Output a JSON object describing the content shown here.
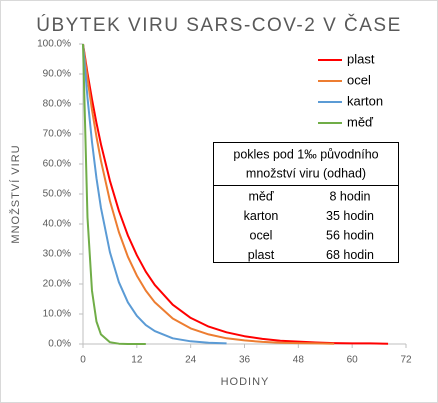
{
  "chart_data": {
    "type": "line",
    "title": "ÚBYTEK VIRU SARS-COV-2 V ČASE",
    "x_label": "HODINY",
    "y_label": "MNOŽSTVÍ VIRU",
    "x": [
      0,
      1,
      2,
      3,
      4,
      6,
      8,
      10,
      12,
      14,
      16,
      20,
      24,
      28,
      32,
      36,
      40,
      44,
      48,
      52,
      56,
      60,
      64,
      68
    ],
    "series": [
      {
        "name": "plast",
        "color": "#ff0000",
        "values": [
          100,
          90.3,
          81.6,
          73.7,
          66.6,
          54.4,
          44.4,
          36.2,
          29.6,
          24.1,
          19.7,
          13.1,
          8.7,
          5.8,
          3.9,
          2.6,
          1.7,
          1.1,
          0.8,
          0.5,
          0.3,
          0.2,
          0.2,
          0.1
        ]
      },
      {
        "name": "ocel",
        "color": "#ed7d31",
        "values": [
          100,
          88.4,
          78.1,
          69.1,
          61.1,
          47.7,
          37.3,
          29.1,
          22.8,
          17.8,
          13.9,
          8.5,
          5.2,
          3.2,
          1.9,
          1.2,
          0.7,
          0.4,
          0.3,
          0.2,
          0.1,
          null,
          null,
          null
        ]
      },
      {
        "name": "karton",
        "color": "#5b9bd5",
        "values": [
          100,
          82.1,
          67.4,
          55.3,
          45.4,
          30.6,
          20.6,
          13.9,
          9.4,
          6.3,
          4.3,
          1.9,
          0.9,
          0.4,
          0.2,
          null,
          null,
          null,
          null,
          null,
          null,
          null,
          null,
          null
        ]
      },
      {
        "name": "měď",
        "color": "#70ad47",
        "values": [
          100,
          42.2,
          17.8,
          7.5,
          3.2,
          0.6,
          0.1,
          0,
          0,
          0,
          null,
          null,
          null,
          null,
          null,
          null,
          null,
          null,
          null,
          null,
          null,
          null,
          null,
          null
        ]
      }
    ],
    "xlim": [
      0,
      72
    ],
    "xticks": [
      0,
      12,
      24,
      36,
      48,
      60,
      72
    ],
    "ylim": [
      0,
      100
    ],
    "yticks": [
      {
        "value": 0,
        "label": "0.0%"
      },
      {
        "value": 10,
        "label": "10.0%"
      },
      {
        "value": 20,
        "label": "20.0%"
      },
      {
        "value": 30,
        "label": "30.0%"
      },
      {
        "value": 40,
        "label": "40.0%"
      },
      {
        "value": 50,
        "label": "50.0%"
      },
      {
        "value": 60,
        "label": "60.0%"
      },
      {
        "value": 70,
        "label": "70.0%"
      },
      {
        "value": 80,
        "label": "80.0%"
      },
      {
        "value": 90,
        "label": "90.0%"
      },
      {
        "value": 100,
        "label": "100.0%"
      }
    ],
    "grid": false,
    "legend": "top-right",
    "table": {
      "title_lines": [
        "pokles pod 1‰ původního",
        "množství viru (odhad)"
      ],
      "rows": [
        [
          "měď",
          "8 hodin"
        ],
        [
          "karton",
          "35 hodin"
        ],
        [
          "ocel",
          "56 hodin"
        ],
        [
          "plast",
          "68 hodin"
        ]
      ]
    }
  }
}
